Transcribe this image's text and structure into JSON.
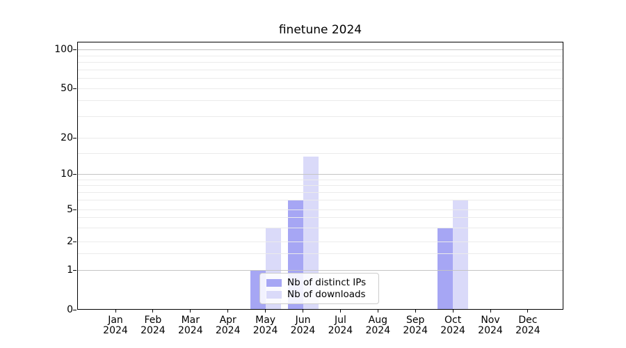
{
  "chart_data": {
    "type": "bar",
    "title": "finetune 2024",
    "categories": [
      "Jan",
      "Feb",
      "Mar",
      "Apr",
      "May",
      "Jun",
      "Jul",
      "Aug",
      "Sep",
      "Oct",
      "Nov",
      "Dec"
    ],
    "category_year": "2024",
    "series": [
      {
        "name": "Nb of distinct IPs",
        "color": "#a6a6f4",
        "values": [
          0,
          0,
          0,
          0,
          1,
          6,
          0,
          0,
          0,
          3,
          0,
          0
        ]
      },
      {
        "name": "Nb of downloads",
        "color": "#dadaf9",
        "values": [
          0,
          0,
          0,
          0,
          3,
          14,
          0,
          0,
          0,
          6,
          0,
          0
        ]
      }
    ],
    "xlabel": "",
    "ylabel": "",
    "y_axis": {
      "scale": "log-like",
      "tick_labels": [
        "0",
        "1",
        "2",
        "5",
        "10",
        "20",
        "50",
        "100"
      ],
      "tick_values": [
        0,
        1,
        2,
        5,
        10,
        20,
        50,
        100
      ],
      "minor_tick_values": [
        1.5,
        3,
        4,
        6,
        7,
        8,
        9,
        15,
        30,
        40,
        60,
        70,
        80,
        90
      ],
      "ylim": [
        0,
        110
      ]
    },
    "grid": "on",
    "legend_position": "lower center-left inside plot",
    "colors": {
      "major_gridline": "#c4c4c4",
      "minor_gridline": "#ebebeb",
      "axis": "#000000",
      "text": "#000000"
    }
  }
}
